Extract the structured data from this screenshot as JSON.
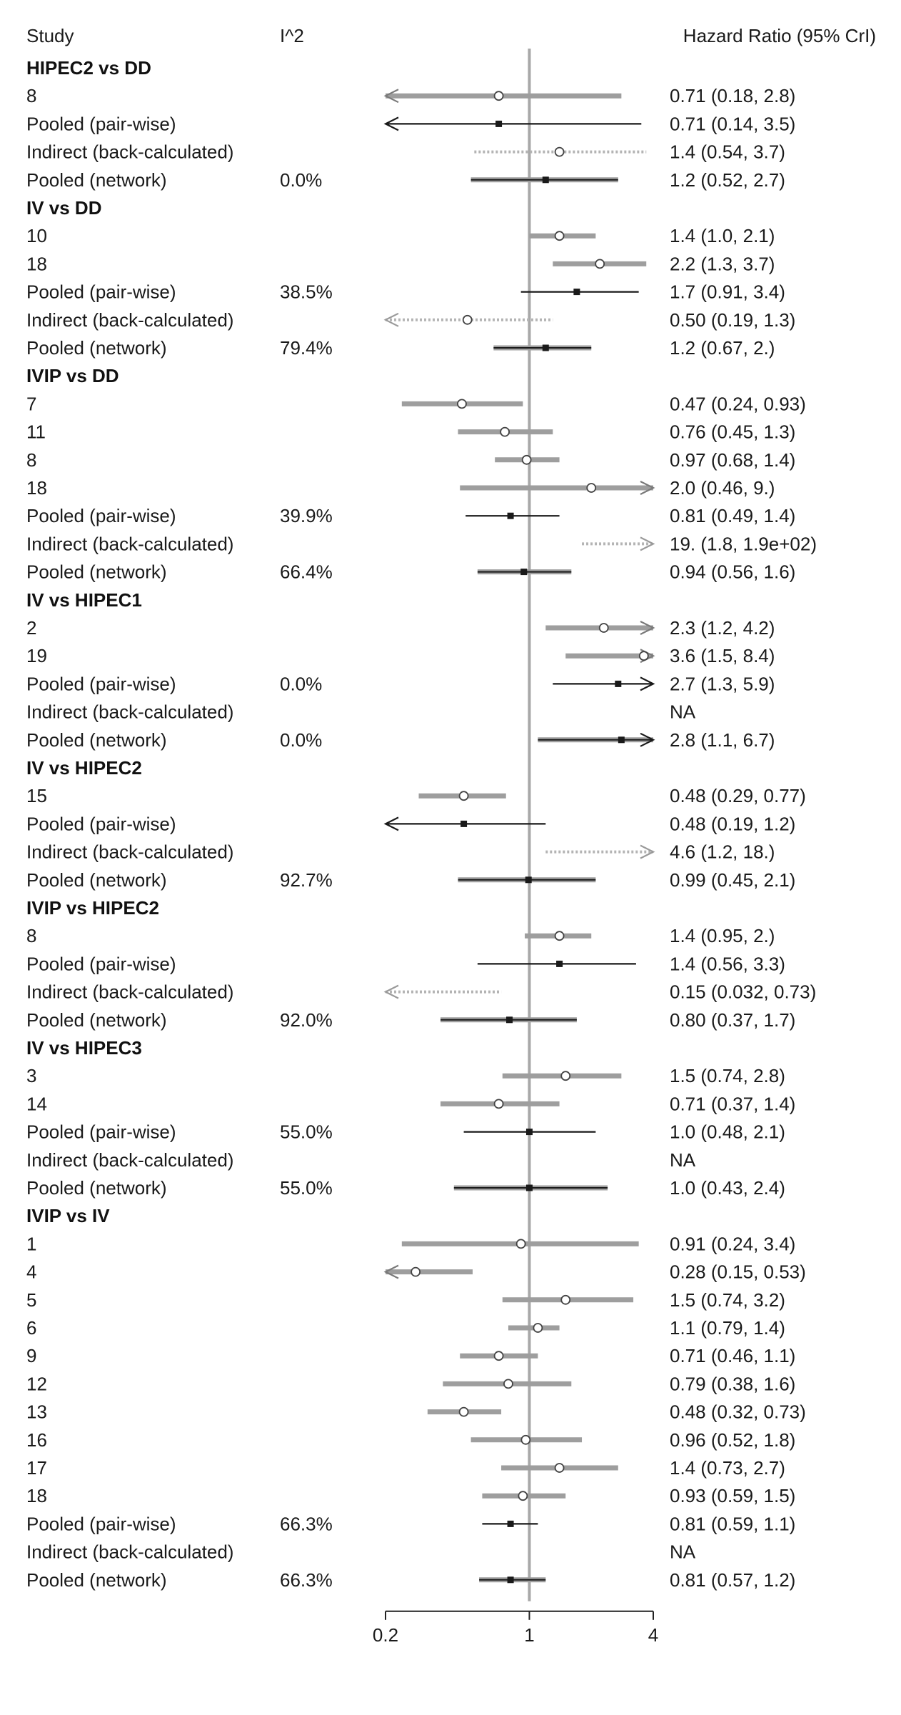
{
  "chart_data": {
    "type": "forest",
    "x_scale": "log",
    "xlim": [
      0.2,
      4
    ],
    "ticks": [
      "0.2",
      "1",
      "4"
    ],
    "reference_line": 1,
    "header": {
      "study": "Study",
      "i2": "I^2",
      "effect": "Hazard Ratio (95% CrI)"
    },
    "colors": {
      "direct": "#9e9e9e",
      "pooled": "#1a1a1a",
      "indirect": "#b4b4b4",
      "reference": "#a8a8a8"
    },
    "groups": [
      {
        "title": "HIPEC2 vs DD",
        "rows": [
          {
            "label": "8",
            "i2": "",
            "est": 0.71,
            "lo": 0.18,
            "hi": 2.8,
            "type": "study",
            "text": "0.71 (0.18, 2.8)"
          },
          {
            "label": "Pooled (pair-wise)",
            "i2": "",
            "est": 0.71,
            "lo": 0.14,
            "hi": 3.5,
            "type": "pairwise",
            "text": "0.71 (0.14, 3.5)"
          },
          {
            "label": "Indirect (back-calculated)",
            "i2": "",
            "est": 1.4,
            "lo": 0.54,
            "hi": 3.7,
            "type": "indirect",
            "text": "1.4 (0.54, 3.7)"
          },
          {
            "label": "Pooled (network)",
            "i2": "0.0%",
            "est": 1.2,
            "lo": 0.52,
            "hi": 2.7,
            "type": "network",
            "text": "1.2 (0.52, 2.7)"
          }
        ]
      },
      {
        "title": "IV vs DD",
        "rows": [
          {
            "label": "10",
            "i2": "",
            "est": 1.4,
            "lo": 1.0,
            "hi": 2.1,
            "type": "study",
            "text": "1.4 (1.0, 2.1)"
          },
          {
            "label": "18",
            "i2": "",
            "est": 2.2,
            "lo": 1.3,
            "hi": 3.7,
            "type": "study",
            "text": "2.2 (1.3, 3.7)"
          },
          {
            "label": "Pooled (pair-wise)",
            "i2": "38.5%",
            "est": 1.7,
            "lo": 0.91,
            "hi": 3.4,
            "type": "pairwise",
            "text": "1.7 (0.91, 3.4)"
          },
          {
            "label": "Indirect (back-calculated)",
            "i2": "",
            "est": 0.5,
            "lo": 0.19,
            "hi": 1.3,
            "type": "indirect",
            "text": "0.50 (0.19, 1.3)"
          },
          {
            "label": "Pooled (network)",
            "i2": "79.4%",
            "est": 1.2,
            "lo": 0.67,
            "hi": 2.0,
            "type": "network",
            "text": "1.2 (0.67,  2.)"
          }
        ]
      },
      {
        "title": "IVIP vs DD",
        "rows": [
          {
            "label": "7",
            "i2": "",
            "est": 0.47,
            "lo": 0.24,
            "hi": 0.93,
            "type": "study",
            "text": "0.47 (0.24, 0.93)"
          },
          {
            "label": "11",
            "i2": "",
            "est": 0.76,
            "lo": 0.45,
            "hi": 1.3,
            "type": "study",
            "text": "0.76 (0.45, 1.3)"
          },
          {
            "label": "8",
            "i2": "",
            "est": 0.97,
            "lo": 0.68,
            "hi": 1.4,
            "type": "study",
            "text": "0.97 (0.68, 1.4)"
          },
          {
            "label": "18",
            "i2": "",
            "est": 2.0,
            "lo": 0.46,
            "hi": 9.0,
            "type": "study",
            "text": "2.0 (0.46,  9.)"
          },
          {
            "label": "Pooled (pair-wise)",
            "i2": "39.9%",
            "est": 0.81,
            "lo": 0.49,
            "hi": 1.4,
            "type": "pairwise",
            "text": "0.81 (0.49, 1.4)"
          },
          {
            "label": "Indirect (back-calculated)",
            "i2": "",
            "est": 19,
            "lo": 1.8,
            "hi": 190,
            "type": "indirect",
            "text": "19. (1.8, 1.9e+02)"
          },
          {
            "label": "Pooled (network)",
            "i2": "66.4%",
            "est": 0.94,
            "lo": 0.56,
            "hi": 1.6,
            "type": "network",
            "text": "0.94 (0.56, 1.6)"
          }
        ]
      },
      {
        "title": "IV vs HIPEC1",
        "rows": [
          {
            "label": "2",
            "i2": "",
            "est": 2.3,
            "lo": 1.2,
            "hi": 4.2,
            "type": "study",
            "text": "2.3 (1.2, 4.2)"
          },
          {
            "label": "19",
            "i2": "",
            "est": 3.6,
            "lo": 1.5,
            "hi": 8.4,
            "type": "study",
            "text": "3.6 (1.5, 8.4)"
          },
          {
            "label": "Pooled (pair-wise)",
            "i2": "0.0%",
            "est": 2.7,
            "lo": 1.3,
            "hi": 5.9,
            "type": "pairwise",
            "text": "2.7 (1.3, 5.9)"
          },
          {
            "label": "Indirect (back-calculated)",
            "i2": "",
            "est": null,
            "lo": null,
            "hi": null,
            "type": "indirect",
            "text": "NA"
          },
          {
            "label": "Pooled (network)",
            "i2": "0.0%",
            "est": 2.8,
            "lo": 1.1,
            "hi": 6.7,
            "type": "network",
            "text": "2.8 (1.1, 6.7)"
          }
        ]
      },
      {
        "title": "IV vs HIPEC2",
        "rows": [
          {
            "label": "15",
            "i2": "",
            "est": 0.48,
            "lo": 0.29,
            "hi": 0.77,
            "type": "study",
            "text": "0.48 (0.29, 0.77)"
          },
          {
            "label": "Pooled (pair-wise)",
            "i2": "",
            "est": 0.48,
            "lo": 0.19,
            "hi": 1.2,
            "type": "pairwise",
            "text": "0.48 (0.19, 1.2)"
          },
          {
            "label": "Indirect (back-calculated)",
            "i2": "",
            "est": 4.6,
            "lo": 1.2,
            "hi": 18,
            "type": "indirect",
            "text": "4.6 (1.2,  18.)"
          },
          {
            "label": "Pooled (network)",
            "i2": "92.7%",
            "est": 0.99,
            "lo": 0.45,
            "hi": 2.1,
            "type": "network",
            "text": "0.99 (0.45, 2.1)"
          }
        ]
      },
      {
        "title": "IVIP vs HIPEC2",
        "rows": [
          {
            "label": "8",
            "i2": "",
            "est": 1.4,
            "lo": 0.95,
            "hi": 2.0,
            "type": "study",
            "text": "1.4 (0.95,  2.)"
          },
          {
            "label": "Pooled (pair-wise)",
            "i2": "",
            "est": 1.4,
            "lo": 0.56,
            "hi": 3.3,
            "type": "pairwise",
            "text": "1.4 (0.56, 3.3)"
          },
          {
            "label": "Indirect (back-calculated)",
            "i2": "",
            "est": 0.15,
            "lo": 0.032,
            "hi": 0.73,
            "type": "indirect",
            "text": "0.15 (0.032, 0.73)"
          },
          {
            "label": "Pooled (network)",
            "i2": "92.0%",
            "est": 0.8,
            "lo": 0.37,
            "hi": 1.7,
            "type": "network",
            "text": "0.80 (0.37, 1.7)"
          }
        ]
      },
      {
        "title": "IV vs HIPEC3",
        "rows": [
          {
            "label": "3",
            "i2": "",
            "est": 1.5,
            "lo": 0.74,
            "hi": 2.8,
            "type": "study",
            "text": "1.5 (0.74, 2.8)"
          },
          {
            "label": "14",
            "i2": "",
            "est": 0.71,
            "lo": 0.37,
            "hi": 1.4,
            "type": "study",
            "text": "0.71 (0.37, 1.4)"
          },
          {
            "label": "Pooled (pair-wise)",
            "i2": "55.0%",
            "est": 1.0,
            "lo": 0.48,
            "hi": 2.1,
            "type": "pairwise",
            "text": "1.0 (0.48, 2.1)"
          },
          {
            "label": "Indirect (back-calculated)",
            "i2": "",
            "est": null,
            "lo": null,
            "hi": null,
            "type": "indirect",
            "text": "NA"
          },
          {
            "label": "Pooled (network)",
            "i2": "55.0%",
            "est": 1.0,
            "lo": 0.43,
            "hi": 2.4,
            "type": "network",
            "text": "1.0 (0.43, 2.4)"
          }
        ]
      },
      {
        "title": "IVIP vs IV",
        "rows": [
          {
            "label": "1",
            "i2": "",
            "est": 0.91,
            "lo": 0.24,
            "hi": 3.4,
            "type": "study",
            "text": "0.91 (0.24, 3.4)"
          },
          {
            "label": "4",
            "i2": "",
            "est": 0.28,
            "lo": 0.15,
            "hi": 0.53,
            "type": "study",
            "text": "0.28 (0.15, 0.53)"
          },
          {
            "label": "5",
            "i2": "",
            "est": 1.5,
            "lo": 0.74,
            "hi": 3.2,
            "type": "study",
            "text": "1.5 (0.74, 3.2)"
          },
          {
            "label": "6",
            "i2": "",
            "est": 1.1,
            "lo": 0.79,
            "hi": 1.4,
            "type": "study",
            "text": "1.1 (0.79, 1.4)"
          },
          {
            "label": "9",
            "i2": "",
            "est": 0.71,
            "lo": 0.46,
            "hi": 1.1,
            "type": "study",
            "text": "0.71 (0.46, 1.1)"
          },
          {
            "label": "12",
            "i2": "",
            "est": 0.79,
            "lo": 0.38,
            "hi": 1.6,
            "type": "study",
            "text": "0.79 (0.38, 1.6)"
          },
          {
            "label": "13",
            "i2": "",
            "est": 0.48,
            "lo": 0.32,
            "hi": 0.73,
            "type": "study",
            "text": "0.48 (0.32, 0.73)"
          },
          {
            "label": "16",
            "i2": "",
            "est": 0.96,
            "lo": 0.52,
            "hi": 1.8,
            "type": "study",
            "text": "0.96 (0.52, 1.8)"
          },
          {
            "label": "17",
            "i2": "",
            "est": 1.4,
            "lo": 0.73,
            "hi": 2.7,
            "type": "study",
            "text": "1.4 (0.73, 2.7)"
          },
          {
            "label": "18",
            "i2": "",
            "est": 0.93,
            "lo": 0.59,
            "hi": 1.5,
            "type": "study",
            "text": "0.93 (0.59, 1.5)"
          },
          {
            "label": "Pooled (pair-wise)",
            "i2": "66.3%",
            "est": 0.81,
            "lo": 0.59,
            "hi": 1.1,
            "type": "pairwise",
            "text": "0.81 (0.59, 1.1)"
          },
          {
            "label": "Indirect (back-calculated)",
            "i2": "",
            "est": null,
            "lo": null,
            "hi": null,
            "type": "indirect",
            "text": "NA"
          },
          {
            "label": "Pooled (network)",
            "i2": "66.3%",
            "est": 0.81,
            "lo": 0.57,
            "hi": 1.2,
            "type": "network",
            "text": "0.81 (0.57, 1.2)"
          }
        ]
      }
    ]
  }
}
